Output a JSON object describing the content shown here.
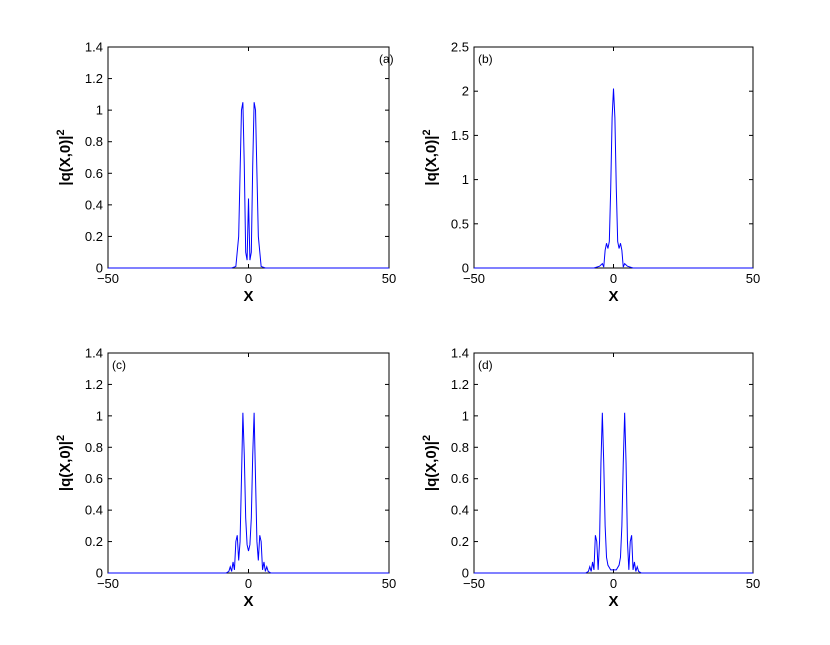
{
  "chart_data": [
    {
      "type": "line",
      "panel_label": "(a)",
      "xlabel": "X",
      "ylabel": "|q(X,0)|",
      "ylabel_sup": "2",
      "xlim": [
        -50,
        50
      ],
      "ylim": [
        0,
        1.4
      ],
      "xticks": [
        -50,
        0,
        50
      ],
      "yticks": [
        0,
        0.2,
        0.4,
        0.6,
        0.8,
        1,
        1.2,
        1.4
      ],
      "ytick_labels": [
        "0",
        "0.2",
        "0.4",
        "0.6",
        "0.8",
        "1",
        "1.2",
        "1.4"
      ],
      "series": [
        {
          "color": "#0000ff",
          "x": [
            -50,
            -6,
            -4.5,
            -3.5,
            -3,
            -2.5,
            -2,
            -1.5,
            -1,
            -0.5,
            0,
            0.5,
            1,
            1.5,
            2,
            2.5,
            3,
            3.5,
            4.5,
            6,
            50
          ],
          "y": [
            0,
            0,
            0.01,
            0.2,
            0.6,
            1.0,
            1.05,
            0.65,
            0.1,
            0.05,
            0.44,
            0.05,
            0.1,
            0.65,
            1.05,
            1.0,
            0.6,
            0.2,
            0.01,
            0,
            0
          ]
        }
      ]
    },
    {
      "type": "line",
      "panel_label": "(b)",
      "xlabel": "X",
      "ylabel": "|q(X,0)|",
      "ylabel_sup": "2",
      "xlim": [
        -50,
        50
      ],
      "ylim": [
        0,
        2.5
      ],
      "xticks": [
        -50,
        0,
        50
      ],
      "yticks": [
        0,
        0.5,
        1,
        1.5,
        2,
        2.5
      ],
      "ytick_labels": [
        "0",
        "0.5",
        "1",
        "1.5",
        "2",
        "2.5"
      ],
      "series": [
        {
          "color": "#0000ff",
          "x": [
            -50,
            -7,
            -5,
            -4,
            -3.5,
            -3,
            -2.5,
            -2,
            -1.5,
            -1,
            -0.5,
            0,
            0.5,
            1,
            1.5,
            2,
            2.5,
            3,
            3.5,
            4,
            5,
            7,
            50
          ],
          "y": [
            0,
            0,
            0.02,
            0.05,
            0.01,
            0.2,
            0.28,
            0.22,
            0.3,
            0.9,
            1.7,
            2.03,
            1.7,
            0.9,
            0.3,
            0.22,
            0.28,
            0.2,
            0.01,
            0.05,
            0.02,
            0,
            0
          ]
        }
      ]
    },
    {
      "type": "line",
      "panel_label": "(c)",
      "xlabel": "X",
      "ylabel": "|q(X,0)|",
      "ylabel_sup": "2",
      "xlim": [
        -50,
        50
      ],
      "ylim": [
        0,
        1.4
      ],
      "xticks": [
        -50,
        0,
        50
      ],
      "yticks": [
        0,
        0.2,
        0.4,
        0.6,
        0.8,
        1,
        1.2,
        1.4
      ],
      "ytick_labels": [
        "0",
        "0.2",
        "0.4",
        "0.6",
        "0.8",
        "1",
        "1.2",
        "1.4"
      ],
      "series": [
        {
          "color": "#0000ff",
          "x": [
            -50,
            -8,
            -7,
            -6.5,
            -6,
            -5.5,
            -5,
            -4.5,
            -4,
            -3.5,
            -3,
            -2.5,
            -2,
            -1.5,
            -1,
            -0.5,
            0,
            0.5,
            1,
            1.5,
            2,
            2.5,
            3,
            3.5,
            4,
            4.5,
            5,
            5.5,
            6,
            6.5,
            7,
            8,
            50
          ],
          "y": [
            0,
            0,
            0.01,
            0.04,
            0.01,
            0.07,
            0.02,
            0.2,
            0.24,
            0.08,
            0.2,
            0.6,
            1.02,
            0.75,
            0.35,
            0.18,
            0.14,
            0.18,
            0.35,
            0.75,
            1.02,
            0.6,
            0.2,
            0.08,
            0.24,
            0.2,
            0.02,
            0.07,
            0.01,
            0.04,
            0.01,
            0,
            0
          ]
        }
      ]
    },
    {
      "type": "line",
      "panel_label": "(d)",
      "xlabel": "X",
      "ylabel": "|q(X,0)|",
      "ylabel_sup": "2",
      "xlim": [
        -50,
        50
      ],
      "ylim": [
        0,
        1.4
      ],
      "xticks": [
        -50,
        0,
        50
      ],
      "yticks": [
        0,
        0.2,
        0.4,
        0.6,
        0.8,
        1,
        1.2,
        1.4
      ],
      "ytick_labels": [
        "0",
        "0.2",
        "0.4",
        "0.6",
        "0.8",
        "1",
        "1.2",
        "1.4"
      ],
      "series": [
        {
          "color": "#0000ff",
          "x": [
            -50,
            -10,
            -9,
            -8.5,
            -8,
            -7.5,
            -7,
            -6.5,
            -6,
            -5.5,
            -5,
            -4.5,
            -4,
            -3.5,
            -3,
            -2.5,
            -2,
            -1,
            0,
            1,
            2,
            2.5,
            3,
            3.5,
            4,
            4.5,
            5,
            5.5,
            6,
            6.5,
            7,
            7.5,
            8,
            8.5,
            9,
            10,
            50
          ],
          "y": [
            0,
            0,
            0.01,
            0.04,
            0.01,
            0.07,
            0.02,
            0.24,
            0.2,
            0.02,
            0.2,
            0.7,
            1.02,
            0.7,
            0.3,
            0.1,
            0.05,
            0.02,
            0.02,
            0.02,
            0.05,
            0.1,
            0.3,
            0.7,
            1.02,
            0.7,
            0.2,
            0.02,
            0.2,
            0.24,
            0.02,
            0.07,
            0.01,
            0.04,
            0.01,
            0,
            0
          ]
        }
      ]
    }
  ]
}
